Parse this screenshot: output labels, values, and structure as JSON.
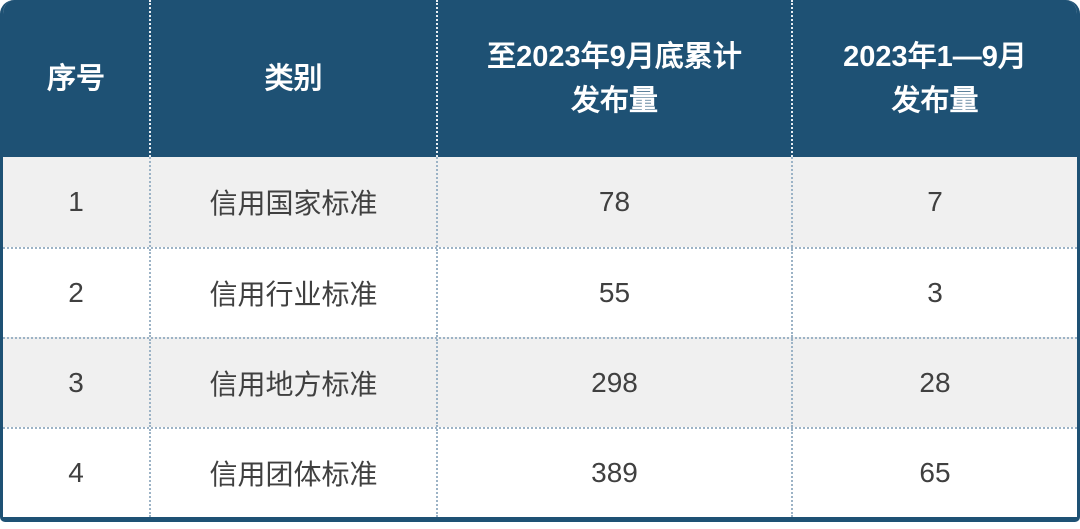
{
  "chart_data": {
    "type": "table",
    "columns": [
      "序号",
      "类别",
      "至2023年9月底累计发布量",
      "2023年1—9月发布量"
    ],
    "rows": [
      [
        "1",
        "信用国家标准",
        "78",
        "7"
      ],
      [
        "2",
        "信用行业标准",
        "55",
        "3"
      ],
      [
        "3",
        "信用地方标准",
        "298",
        "28"
      ],
      [
        "4",
        "信用团体标准",
        "389",
        "65"
      ]
    ]
  },
  "header": {
    "col1": "序号",
    "col2": "类别",
    "col3_line1": "至2023年9月底累计",
    "col3_line2": "发布量",
    "col4_line1": "2023年1—9月",
    "col4_line2": "发布量"
  },
  "colors": {
    "header_bg": "#1e5174",
    "border_color": "#1e5174",
    "alt_row_bg": "#f0f0f0",
    "row_bg": "#ffffff",
    "body_text": "#404040",
    "header_text": "#ffffff",
    "dotted_line": "#9cb3c6",
    "header_dotted": "#e8eef3"
  }
}
